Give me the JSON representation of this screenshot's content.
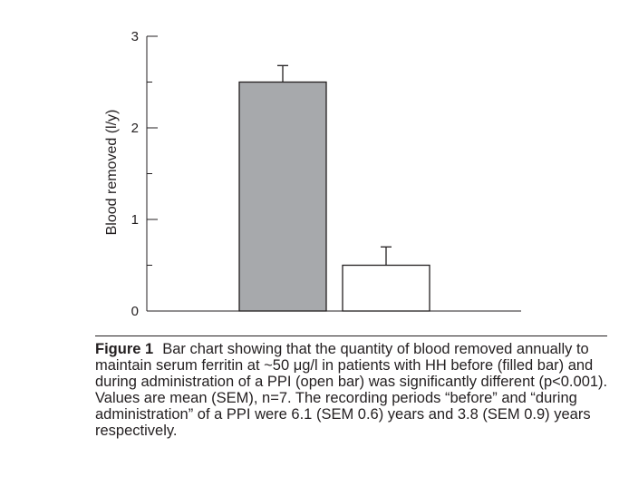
{
  "chart_data": {
    "type": "bar",
    "categories": [
      "before",
      "during administration of a PPI"
    ],
    "values": [
      2.5,
      0.5
    ],
    "errors": [
      0.18,
      0.2
    ],
    "bar_colors": [
      "#a7a9ac",
      "#ffffff"
    ],
    "title": "",
    "xlabel": "",
    "ylabel": "Blood removed (l/y)",
    "ylim": [
      0,
      3
    ],
    "yticks": [
      0,
      1,
      2,
      3
    ],
    "grid": false
  },
  "caption": {
    "label": "Figure 1",
    "text": "Bar chart showing that the quantity of blood removed annually to maintain serum ferritin at ~50 μg/l in patients with HH before (filled bar) and during administration of a PPI (open bar) was significantly different (p<0.001). Values are mean (SEM), n=7. The recording periods “before” and “during administration” of a PPI were 6.1 (SEM 0.6) years and 3.8 (SEM 0.9) years respectively."
  }
}
